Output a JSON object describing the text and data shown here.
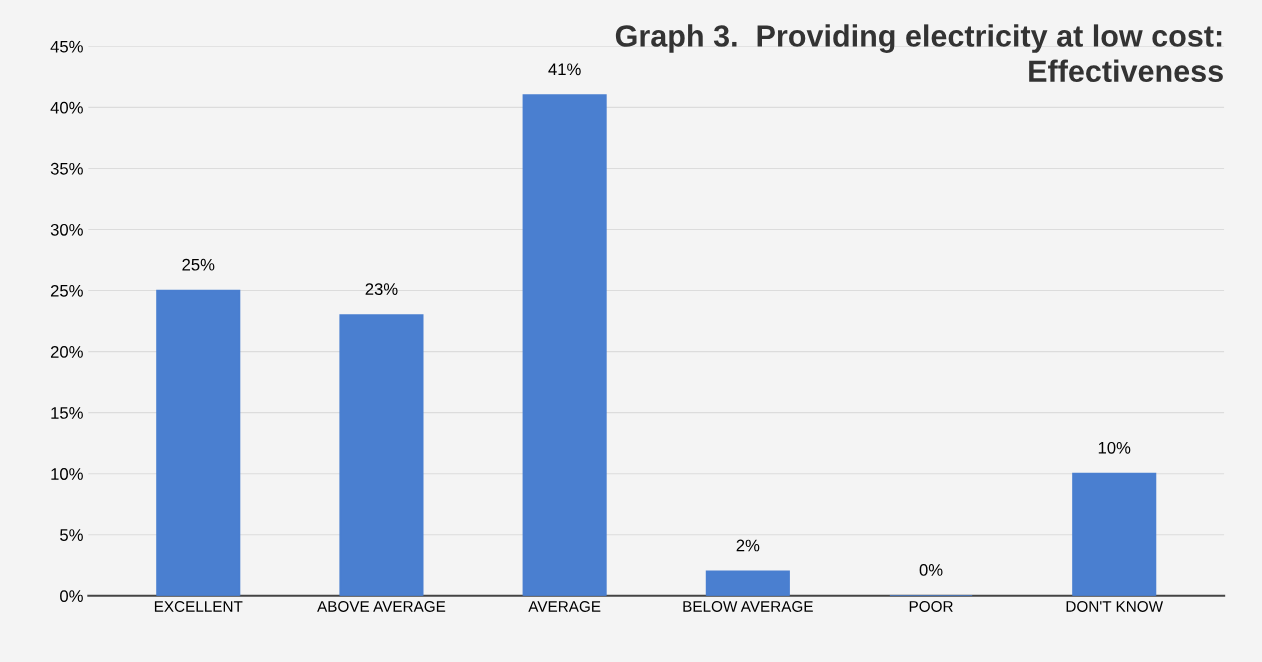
{
  "chart_data": {
    "type": "bar",
    "title": "Graph 3.  Providing electricity at low cost:\nEffectiveness",
    "categories": [
      "EXCELLENT",
      "ABOVE AVERAGE",
      "AVERAGE",
      "BELOW AVERAGE",
      "POOR",
      "DON'T KNOW"
    ],
    "values": [
      25,
      23,
      41,
      2,
      0,
      10
    ],
    "value_labels": [
      "25%",
      "23%",
      "41%",
      "2%",
      "0%",
      "10%"
    ],
    "color": "#4a7fd0",
    "ylim": [
      0,
      45
    ],
    "yticks": [
      {
        "value": 0,
        "label": "0%"
      },
      {
        "value": 5,
        "label": "5%"
      },
      {
        "value": 10,
        "label": "10%"
      },
      {
        "value": 15,
        "label": "15%"
      },
      {
        "value": 20,
        "label": "20%"
      },
      {
        "value": 25,
        "label": "25%"
      },
      {
        "value": 30,
        "label": "30%"
      },
      {
        "value": 35,
        "label": "35%"
      },
      {
        "value": 40,
        "label": "40%"
      },
      {
        "value": 45,
        "label": "45%"
      }
    ],
    "grid": "y"
  }
}
